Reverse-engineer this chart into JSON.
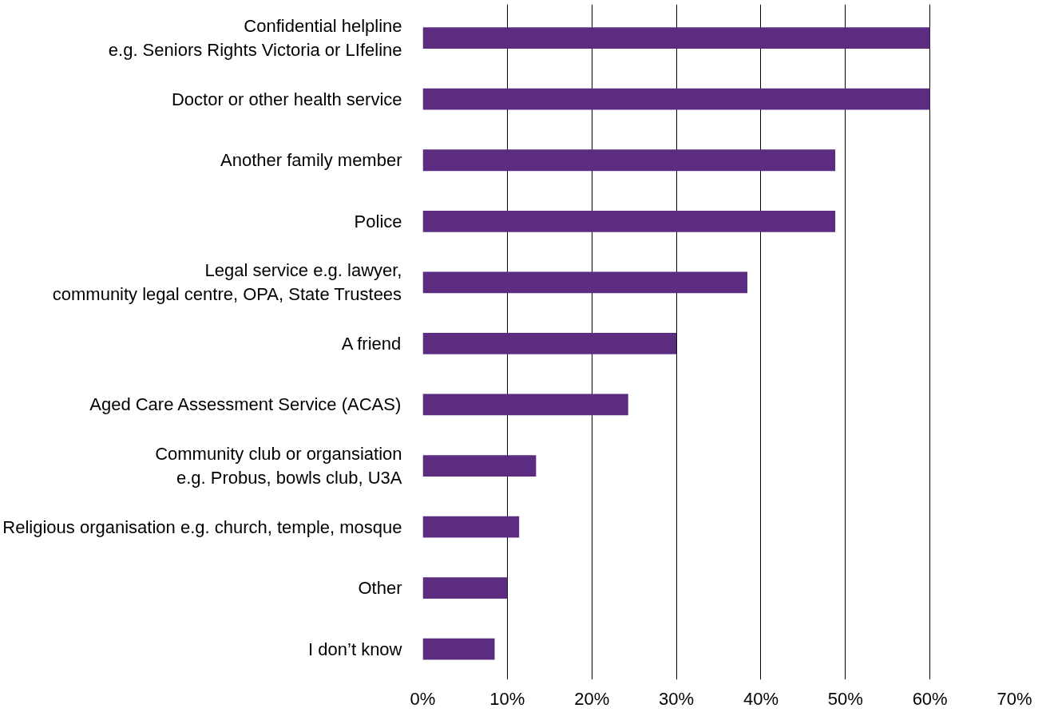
{
  "chart_data": {
    "type": "bar",
    "orientation": "horizontal",
    "categories": [
      "Confidential helpline\ne.g. Seniors Rights Victoria or LIfeline",
      "Doctor or other health service",
      "Another family member",
      "Police",
      "Legal service e.g. lawyer,\ncommunity legal centre, OPA, State Trustees",
      "A friend",
      "Aged Care Assessment Service (ACAS)",
      "Community club or organsiation\ne.g. Probus, bowls club, U3A",
      "Religious organisation e.g. church, temple, mosque",
      "Other",
      "I don’t know"
    ],
    "values": [
      60,
      60,
      48.8,
      48.8,
      38.4,
      30,
      24.3,
      13.4,
      11.4,
      10,
      8.5
    ],
    "color": "#5b2c7f",
    "xlim": [
      0,
      70
    ],
    "xticks": [
      {
        "value": 0,
        "label": "0%"
      },
      {
        "value": 10,
        "label": "10%"
      },
      {
        "value": 20,
        "label": "20%"
      },
      {
        "value": 30,
        "label": "30%"
      },
      {
        "value": 40,
        "label": "40%"
      },
      {
        "value": 50,
        "label": "50%"
      },
      {
        "value": 60,
        "label": "60%"
      },
      {
        "value": 70,
        "label": "70%"
      }
    ],
    "grid": "x"
  }
}
